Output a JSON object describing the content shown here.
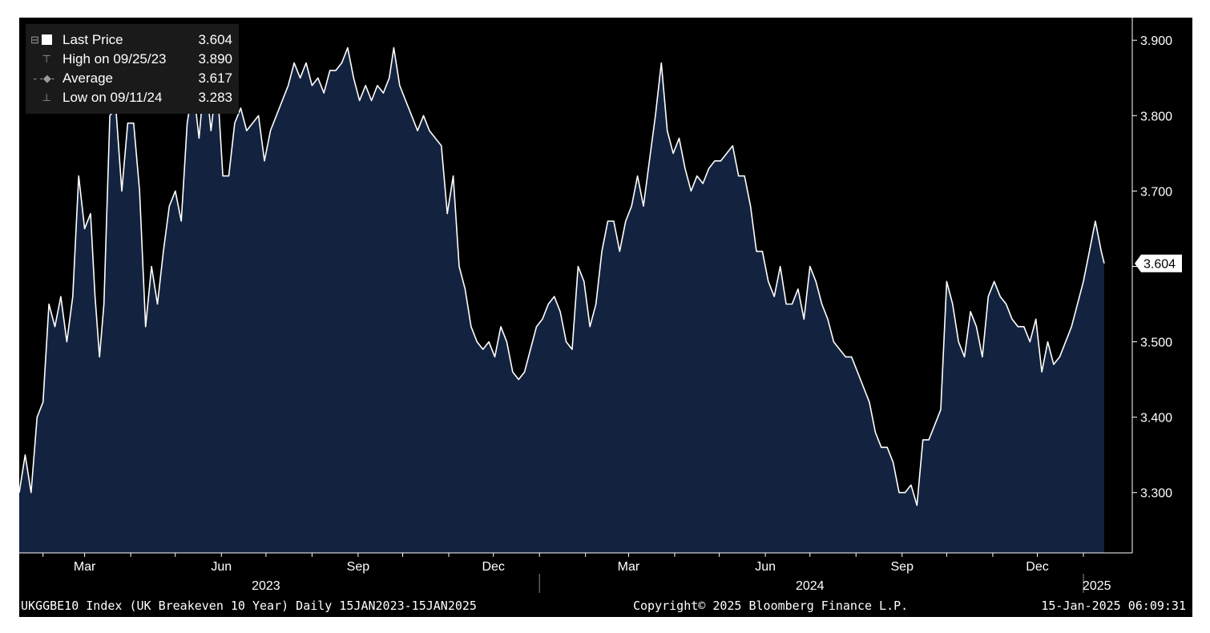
{
  "legend": {
    "rows": [
      {
        "label": "Last Price",
        "value": "3.604"
      },
      {
        "label": "High on 09/25/23",
        "value": "3.890"
      },
      {
        "label": "Average",
        "value": "3.617"
      },
      {
        "label": "Low on 09/11/24",
        "value": "3.283"
      }
    ]
  },
  "footer": {
    "left": "UKGGBE10 Index (UK Breakeven 10 Year)  Daily 15JAN2023-15JAN2025",
    "center": "Copyright© 2025 Bloomberg Finance L.P.",
    "right": "15-Jan-2025 06:09:31"
  },
  "colors": {
    "background": "#000000",
    "area_fill": "#13233f",
    "line": "#ffffff",
    "axis_text": "#ffffff",
    "legend_bg": "#1a1a1a"
  },
  "chart_data": {
    "type": "area",
    "title": "",
    "xlabel": "",
    "ylabel": "",
    "ylim": [
      3.22,
      3.93
    ],
    "x_range": [
      "2023-01-16",
      "2025-01-15"
    ],
    "y_ticks": [
      3.3,
      3.4,
      3.5,
      3.6,
      3.7,
      3.8,
      3.9
    ],
    "y_tick_labels": [
      "3.300",
      "3.400",
      "3.500",
      "3.600",
      "3.700",
      "3.800",
      "3.900"
    ],
    "x_month_ticks": [
      {
        "label": "Mar",
        "date": "2023-03-01"
      },
      {
        "label": "Jun",
        "date": "2023-06-01"
      },
      {
        "label": "Sep",
        "date": "2023-09-01"
      },
      {
        "label": "Dec",
        "date": "2023-12-01"
      },
      {
        "label": "Mar",
        "date": "2024-03-01"
      },
      {
        "label": "Jun",
        "date": "2024-06-01"
      },
      {
        "label": "Sep",
        "date": "2024-09-01"
      },
      {
        "label": "Dec",
        "date": "2024-12-01"
      }
    ],
    "x_year_labels": [
      {
        "label": "2023",
        "date": "2023-07-01"
      },
      {
        "label": "2024",
        "date": "2024-07-01"
      },
      {
        "label": "2025",
        "date": "2025-01-10"
      }
    ],
    "year_separators": [
      "2024-01-01",
      "2025-01-01"
    ],
    "last_price_label": "3.604",
    "grid": false,
    "legend_position": "top-left",
    "series": [
      {
        "name": "Last Price",
        "points": [
          [
            "2023-01-16",
            3.3
          ],
          [
            "2023-01-20",
            3.35
          ],
          [
            "2023-01-24",
            3.3
          ],
          [
            "2023-01-28",
            3.4
          ],
          [
            "2023-02-01",
            3.42
          ],
          [
            "2023-02-05",
            3.55
          ],
          [
            "2023-02-09",
            3.52
          ],
          [
            "2023-02-13",
            3.56
          ],
          [
            "2023-02-17",
            3.5
          ],
          [
            "2023-02-21",
            3.56
          ],
          [
            "2023-02-25",
            3.72
          ],
          [
            "2023-03-01",
            3.65
          ],
          [
            "2023-03-05",
            3.67
          ],
          [
            "2023-03-08",
            3.56
          ],
          [
            "2023-03-11",
            3.48
          ],
          [
            "2023-03-14",
            3.55
          ],
          [
            "2023-03-18",
            3.8
          ],
          [
            "2023-03-22",
            3.81
          ],
          [
            "2023-03-26",
            3.7
          ],
          [
            "2023-03-30",
            3.79
          ],
          [
            "2023-04-03",
            3.79
          ],
          [
            "2023-04-07",
            3.7
          ],
          [
            "2023-04-11",
            3.52
          ],
          [
            "2023-04-15",
            3.6
          ],
          [
            "2023-04-19",
            3.55
          ],
          [
            "2023-04-23",
            3.62
          ],
          [
            "2023-04-27",
            3.68
          ],
          [
            "2023-05-01",
            3.7
          ],
          [
            "2023-05-05",
            3.66
          ],
          [
            "2023-05-09",
            3.79
          ],
          [
            "2023-05-13",
            3.84
          ],
          [
            "2023-05-17",
            3.77
          ],
          [
            "2023-05-21",
            3.86
          ],
          [
            "2023-05-25",
            3.78
          ],
          [
            "2023-05-29",
            3.85
          ],
          [
            "2023-06-02",
            3.72
          ],
          [
            "2023-06-06",
            3.72
          ],
          [
            "2023-06-10",
            3.79
          ],
          [
            "2023-06-14",
            3.81
          ],
          [
            "2023-06-18",
            3.78
          ],
          [
            "2023-06-22",
            3.79
          ],
          [
            "2023-06-26",
            3.8
          ],
          [
            "2023-06-30",
            3.74
          ],
          [
            "2023-07-04",
            3.78
          ],
          [
            "2023-07-08",
            3.8
          ],
          [
            "2023-07-12",
            3.82
          ],
          [
            "2023-07-16",
            3.84
          ],
          [
            "2023-07-20",
            3.87
          ],
          [
            "2023-07-24",
            3.85
          ],
          [
            "2023-07-28",
            3.87
          ],
          [
            "2023-08-01",
            3.84
          ],
          [
            "2023-08-05",
            3.85
          ],
          [
            "2023-08-09",
            3.83
          ],
          [
            "2023-08-13",
            3.86
          ],
          [
            "2023-08-17",
            3.86
          ],
          [
            "2023-08-21",
            3.87
          ],
          [
            "2023-08-25",
            3.89
          ],
          [
            "2023-08-29",
            3.85
          ],
          [
            "2023-09-02",
            3.82
          ],
          [
            "2023-09-06",
            3.84
          ],
          [
            "2023-09-10",
            3.82
          ],
          [
            "2023-09-14",
            3.84
          ],
          [
            "2023-09-18",
            3.83
          ],
          [
            "2023-09-22",
            3.85
          ],
          [
            "2023-09-25",
            3.89
          ],
          [
            "2023-09-29",
            3.84
          ],
          [
            "2023-10-03",
            3.82
          ],
          [
            "2023-10-07",
            3.8
          ],
          [
            "2023-10-11",
            3.78
          ],
          [
            "2023-10-15",
            3.8
          ],
          [
            "2023-10-19",
            3.78
          ],
          [
            "2023-10-23",
            3.77
          ],
          [
            "2023-10-27",
            3.76
          ],
          [
            "2023-10-31",
            3.67
          ],
          [
            "2023-11-04",
            3.72
          ],
          [
            "2023-11-08",
            3.6
          ],
          [
            "2023-11-12",
            3.57
          ],
          [
            "2023-11-16",
            3.52
          ],
          [
            "2023-11-20",
            3.5
          ],
          [
            "2023-11-24",
            3.49
          ],
          [
            "2023-11-28",
            3.5
          ],
          [
            "2023-12-02",
            3.48
          ],
          [
            "2023-12-06",
            3.52
          ],
          [
            "2023-12-10",
            3.5
          ],
          [
            "2023-12-14",
            3.46
          ],
          [
            "2023-12-18",
            3.45
          ],
          [
            "2023-12-22",
            3.46
          ],
          [
            "2023-12-26",
            3.49
          ],
          [
            "2023-12-30",
            3.52
          ],
          [
            "2024-01-03",
            3.53
          ],
          [
            "2024-01-07",
            3.55
          ],
          [
            "2024-01-11",
            3.56
          ],
          [
            "2024-01-15",
            3.54
          ],
          [
            "2024-01-19",
            3.5
          ],
          [
            "2024-01-23",
            3.49
          ],
          [
            "2024-01-27",
            3.6
          ],
          [
            "2024-01-31",
            3.58
          ],
          [
            "2024-02-04",
            3.52
          ],
          [
            "2024-02-08",
            3.55
          ],
          [
            "2024-02-12",
            3.62
          ],
          [
            "2024-02-16",
            3.66
          ],
          [
            "2024-02-20",
            3.66
          ],
          [
            "2024-02-24",
            3.62
          ],
          [
            "2024-02-28",
            3.66
          ],
          [
            "2024-03-03",
            3.68
          ],
          [
            "2024-03-07",
            3.72
          ],
          [
            "2024-03-11",
            3.68
          ],
          [
            "2024-03-15",
            3.74
          ],
          [
            "2024-03-19",
            3.8
          ],
          [
            "2024-03-23",
            3.87
          ],
          [
            "2024-03-27",
            3.78
          ],
          [
            "2024-03-31",
            3.75
          ],
          [
            "2024-04-04",
            3.77
          ],
          [
            "2024-04-08",
            3.73
          ],
          [
            "2024-04-12",
            3.7
          ],
          [
            "2024-04-16",
            3.72
          ],
          [
            "2024-04-20",
            3.71
          ],
          [
            "2024-04-24",
            3.73
          ],
          [
            "2024-04-28",
            3.74
          ],
          [
            "2024-05-02",
            3.74
          ],
          [
            "2024-05-06",
            3.75
          ],
          [
            "2024-05-10",
            3.76
          ],
          [
            "2024-05-14",
            3.72
          ],
          [
            "2024-05-18",
            3.72
          ],
          [
            "2024-05-22",
            3.68
          ],
          [
            "2024-05-26",
            3.62
          ],
          [
            "2024-05-30",
            3.62
          ],
          [
            "2024-06-03",
            3.58
          ],
          [
            "2024-06-07",
            3.56
          ],
          [
            "2024-06-11",
            3.6
          ],
          [
            "2024-06-15",
            3.55
          ],
          [
            "2024-06-19",
            3.55
          ],
          [
            "2024-06-23",
            3.57
          ],
          [
            "2024-06-27",
            3.53
          ],
          [
            "2024-07-01",
            3.6
          ],
          [
            "2024-07-05",
            3.58
          ],
          [
            "2024-07-09",
            3.55
          ],
          [
            "2024-07-13",
            3.53
          ],
          [
            "2024-07-17",
            3.5
          ],
          [
            "2024-07-21",
            3.49
          ],
          [
            "2024-07-25",
            3.48
          ],
          [
            "2024-07-29",
            3.48
          ],
          [
            "2024-08-02",
            3.46
          ],
          [
            "2024-08-06",
            3.44
          ],
          [
            "2024-08-10",
            3.42
          ],
          [
            "2024-08-14",
            3.38
          ],
          [
            "2024-08-18",
            3.36
          ],
          [
            "2024-08-22",
            3.36
          ],
          [
            "2024-08-26",
            3.34
          ],
          [
            "2024-08-30",
            3.3
          ],
          [
            "2024-09-03",
            3.3
          ],
          [
            "2024-09-07",
            3.31
          ],
          [
            "2024-09-11",
            3.283
          ],
          [
            "2024-09-15",
            3.37
          ],
          [
            "2024-09-19",
            3.37
          ],
          [
            "2024-09-23",
            3.39
          ],
          [
            "2024-09-27",
            3.41
          ],
          [
            "2024-10-01",
            3.58
          ],
          [
            "2024-10-05",
            3.55
          ],
          [
            "2024-10-09",
            3.5
          ],
          [
            "2024-10-13",
            3.48
          ],
          [
            "2024-10-17",
            3.54
          ],
          [
            "2024-10-21",
            3.52
          ],
          [
            "2024-10-25",
            3.48
          ],
          [
            "2024-10-29",
            3.56
          ],
          [
            "2024-11-02",
            3.58
          ],
          [
            "2024-11-06",
            3.56
          ],
          [
            "2024-11-10",
            3.55
          ],
          [
            "2024-11-14",
            3.53
          ],
          [
            "2024-11-18",
            3.52
          ],
          [
            "2024-11-22",
            3.52
          ],
          [
            "2024-11-26",
            3.5
          ],
          [
            "2024-11-30",
            3.53
          ],
          [
            "2024-12-04",
            3.46
          ],
          [
            "2024-12-08",
            3.5
          ],
          [
            "2024-12-12",
            3.47
          ],
          [
            "2024-12-16",
            3.48
          ],
          [
            "2024-12-20",
            3.5
          ],
          [
            "2024-12-24",
            3.52
          ],
          [
            "2024-12-28",
            3.55
          ],
          [
            "2025-01-01",
            3.58
          ],
          [
            "2025-01-05",
            3.62
          ],
          [
            "2025-01-09",
            3.66
          ],
          [
            "2025-01-13",
            3.62
          ],
          [
            "2025-01-15",
            3.604
          ]
        ]
      }
    ]
  }
}
